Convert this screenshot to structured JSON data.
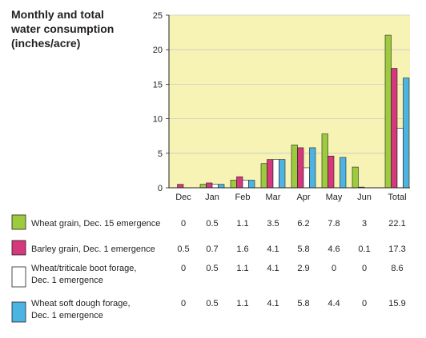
{
  "chart_data": {
    "type": "bar",
    "title": "Monthly and total\nwater consumption\n(inches/acre)",
    "categories": [
      "Dec",
      "Jan",
      "Feb",
      "Mar",
      "Apr",
      "May",
      "Jun",
      "Total"
    ],
    "ylim": [
      0,
      25
    ],
    "yticks": [
      0,
      5,
      10,
      15,
      20,
      25
    ],
    "grid": true,
    "plot_background": "#f6f3b4",
    "series": [
      {
        "name": "Wheat grain, Dec. 15 emergence",
        "color": "#9ccc3d",
        "values": [
          0,
          0.5,
          1.1,
          3.5,
          6.2,
          7.8,
          3,
          22.1
        ],
        "labels": [
          "0",
          "0.5",
          "1.1",
          "3.5",
          "6.2",
          "7.8",
          "3",
          "22.1"
        ]
      },
      {
        "name": "Barley grain, Dec. 1 emergence",
        "color": "#d6387d",
        "values": [
          0.5,
          0.7,
          1.6,
          4.1,
          5.8,
          4.6,
          0.1,
          17.3
        ],
        "labels": [
          "0.5",
          "0.7",
          "1.6",
          "4.1",
          "5.8",
          "4.6",
          "0.1",
          "17.3"
        ]
      },
      {
        "name": "Wheat/triticale boot forage,\nDec. 1 emergence",
        "color": "#ffffff",
        "values": [
          0,
          0.5,
          1.1,
          4.1,
          2.9,
          0,
          0,
          8.6
        ],
        "labels": [
          "0",
          "0.5",
          "1.1",
          "4.1",
          "2.9",
          "0",
          "0",
          "8.6"
        ]
      },
      {
        "name": "Wheat soft dough forage,\nDec. 1 emergence",
        "color": "#4cb4e2",
        "values": [
          0,
          0.5,
          1.1,
          4.1,
          5.8,
          4.4,
          0,
          15.9
        ],
        "labels": [
          "0",
          "0.5",
          "1.1",
          "4.1",
          "5.8",
          "4.4",
          "0",
          "15.9"
        ]
      }
    ]
  }
}
